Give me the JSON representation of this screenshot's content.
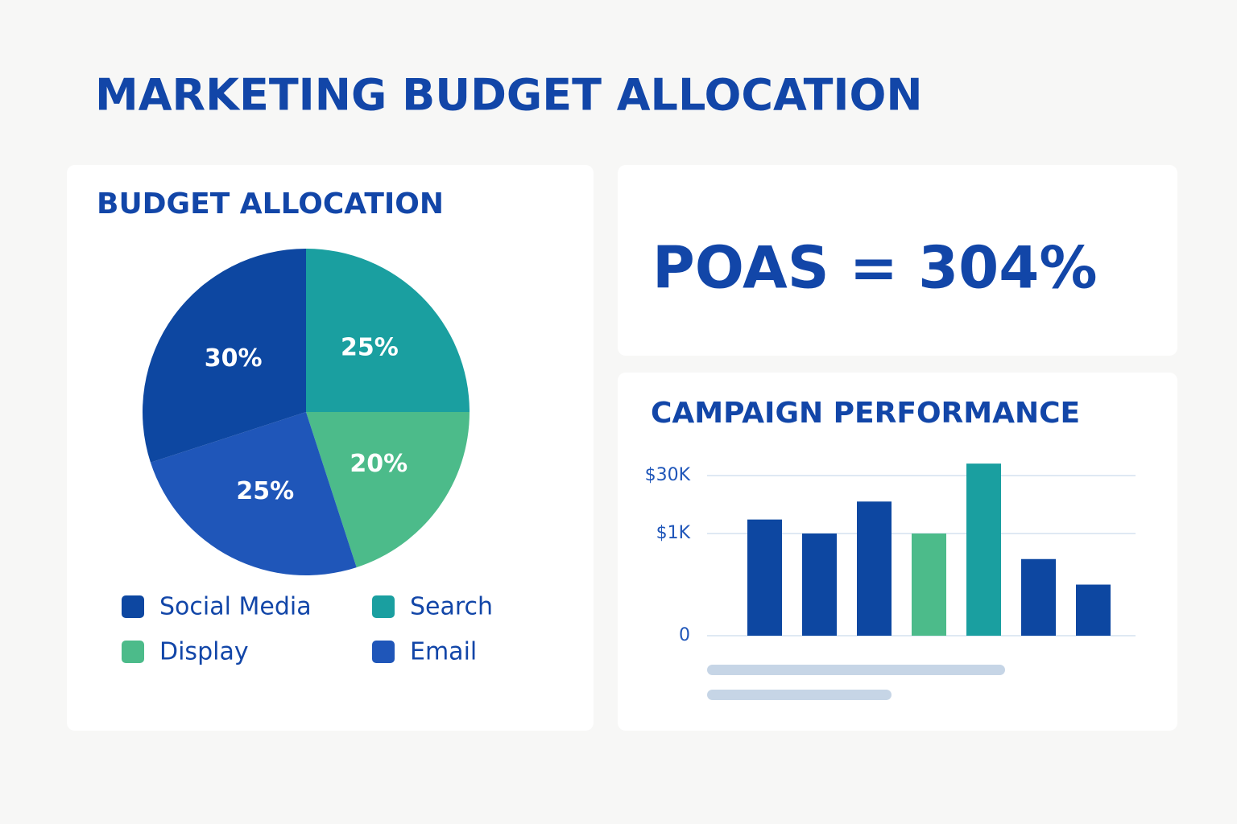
{
  "header": {
    "title": "MARKETING BUDGET ALLOCATION"
  },
  "kpi": {
    "text": "POAS = 304%"
  },
  "chart_data": [
    {
      "type": "pie",
      "title": "BUDGET ALLOCATION",
      "categories": [
        "Search",
        "Display",
        "Email",
        "Social Media"
      ],
      "values": [
        25,
        20,
        25,
        30
      ],
      "value_labels": [
        "25%",
        "20%",
        "25%",
        "30%"
      ],
      "colors": [
        "#1a9fa0",
        "#4cbb8a",
        "#1f56b9",
        "#0d47a1"
      ]
    },
    {
      "type": "bar",
      "title": "CAMPAIGN PERFORMANCE",
      "categories": [
        null,
        null,
        null,
        null,
        null,
        null,
        null
      ],
      "values": [
        8000,
        1000,
        17000,
        1000,
        36000,
        750,
        500
      ],
      "colors": [
        "#0d47a1",
        "#0d47a1",
        "#0d47a1",
        "#4cbb8a",
        "#1a9fa0",
        "#0d47a1",
        "#0d47a1"
      ],
      "ylim": [
        0,
        36000
      ],
      "yticks": [
        {
          "value": 0,
          "label": "0"
        },
        {
          "value": 1000,
          "label": "$1K"
        },
        {
          "value": 30000,
          "label": "$30K"
        }
      ],
      "grid": true
    }
  ]
}
